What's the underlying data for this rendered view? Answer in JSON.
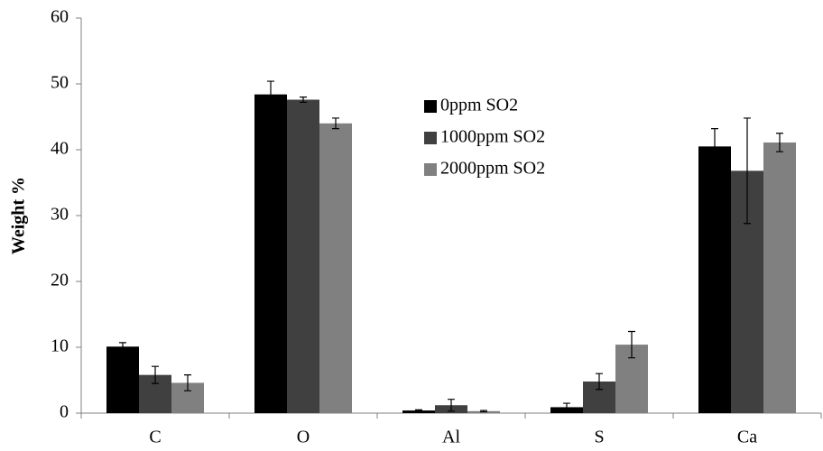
{
  "chart_data": {
    "type": "bar",
    "y_label": "Weight %",
    "categories": [
      "C",
      "O",
      "Al",
      "S",
      "Ca"
    ],
    "series": [
      {
        "name": "0ppm SO2",
        "color": "#000000",
        "values": [
          10.1,
          48.4,
          0.4,
          0.9,
          40.5
        ],
        "errors": [
          0.6,
          2.0,
          0.1,
          0.6,
          2.7
        ]
      },
      {
        "name": "1000ppm SO2",
        "color": "#404040",
        "values": [
          5.8,
          47.6,
          1.2,
          4.8,
          36.8
        ],
        "errors": [
          1.3,
          0.4,
          0.9,
          1.2,
          8.0
        ]
      },
      {
        "name": "2000ppm SO2",
        "color": "#808080",
        "values": [
          4.6,
          44.0,
          0.3,
          10.4,
          41.1
        ],
        "errors": [
          1.2,
          0.8,
          0.1,
          2.0,
          1.4
        ]
      }
    ],
    "ylim": [
      0,
      60
    ],
    "yticks": [
      0,
      10,
      20,
      30,
      40,
      50,
      60
    ],
    "grid": false,
    "legend": "top-center"
  }
}
